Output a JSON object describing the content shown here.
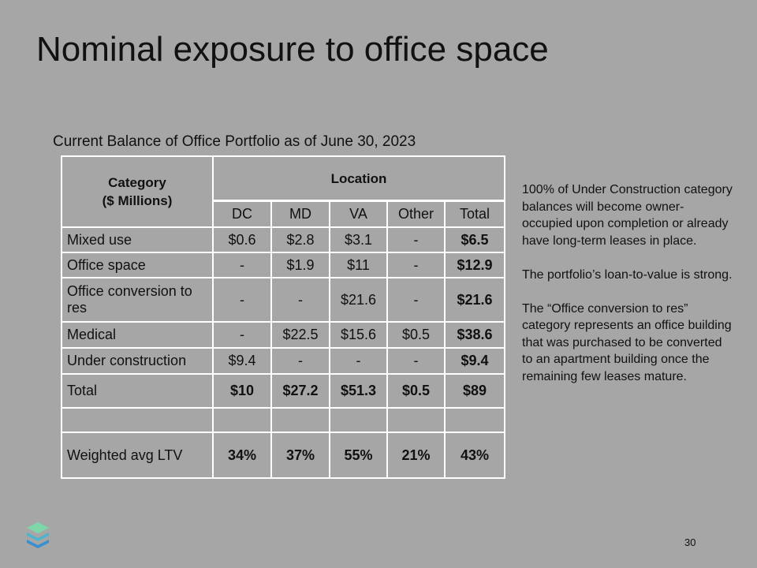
{
  "title": "Nominal exposure to office space",
  "table": {
    "caption": "Current Balance of Office Portfolio as of June 30, 2023",
    "category_header": [
      "Category",
      "($ Millions)"
    ],
    "group_header": "Location",
    "columns": [
      "DC",
      "MD",
      "VA",
      "Other",
      "Total"
    ],
    "rows": [
      {
        "category": "Mixed use",
        "values": [
          "$0.6",
          "$2.8",
          "$3.1",
          "-",
          "$6.5"
        ]
      },
      {
        "category": "Office space",
        "values": [
          "-",
          "$1.9",
          "$11",
          "-",
          "$12.9"
        ]
      },
      {
        "category": "Office conversion to res",
        "values": [
          "-",
          "-",
          "$21.6",
          "-",
          "$21.6"
        ]
      },
      {
        "category": "Medical",
        "values": [
          "-",
          "$22.5",
          "$15.6",
          "$0.5",
          "$38.6"
        ]
      },
      {
        "category": "Under construction",
        "values": [
          "$9.4",
          "-",
          "-",
          "-",
          "$9.4"
        ]
      }
    ],
    "total": {
      "category": "Total",
      "values": [
        "$10",
        "$27.2",
        "$51.3",
        "$0.5",
        "$89"
      ]
    },
    "ltv": {
      "category": "Weighted avg LTV",
      "values": [
        "34%",
        "37%",
        "55%",
        "21%",
        "43%"
      ]
    }
  },
  "notes": [
    "100% of Under Construction category balances will become owner-occupied upon completion or already have long-term leases in place.",
    "The portfolio’s loan-to-value is strong.",
    "The “Office conversion to res” category represents an office building that was purchased to be converted to an apartment building once the remaining few leases mature."
  ],
  "page_number": "30"
}
